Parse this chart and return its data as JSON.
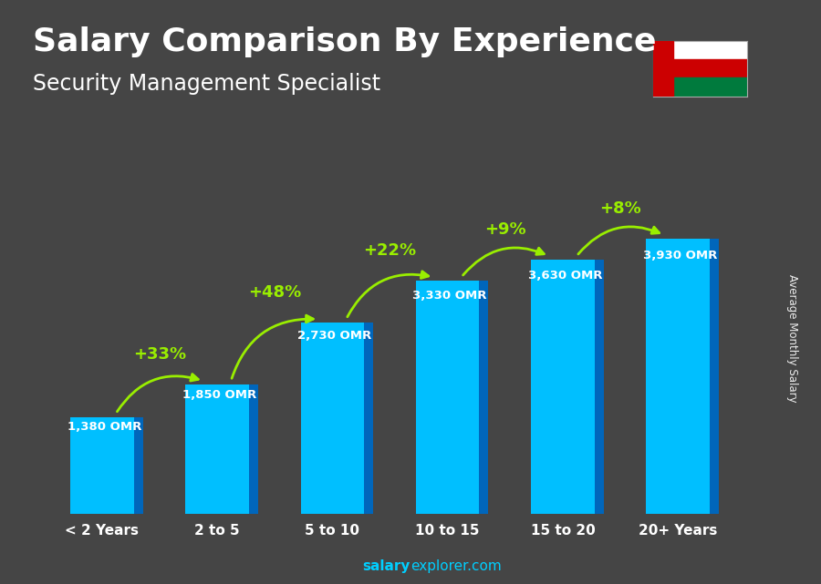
{
  "title": "Salary Comparison By Experience",
  "subtitle": "Security Management Specialist",
  "categories": [
    "< 2 Years",
    "2 to 5",
    "5 to 10",
    "10 to 15",
    "15 to 20",
    "20+ Years"
  ],
  "values": [
    1380,
    1850,
    2730,
    3330,
    3630,
    3930
  ],
  "value_labels": [
    "1,380 OMR",
    "1,850 OMR",
    "2,730 OMR",
    "3,330 OMR",
    "3,630 OMR",
    "3,930 OMR"
  ],
  "pct_labels": [
    "+33%",
    "+48%",
    "+22%",
    "+9%",
    "+8%"
  ],
  "bar_color": "#00bfff",
  "bar_color_dark": "#0066bb",
  "bg_color": "#454545",
  "text_color": "#ffffff",
  "green_color": "#99ee00",
  "ylabel": "Average Monthly Salary",
  "ylim": [
    0,
    5000
  ],
  "title_fontsize": 26,
  "subtitle_fontsize": 17,
  "bar_width": 0.55
}
